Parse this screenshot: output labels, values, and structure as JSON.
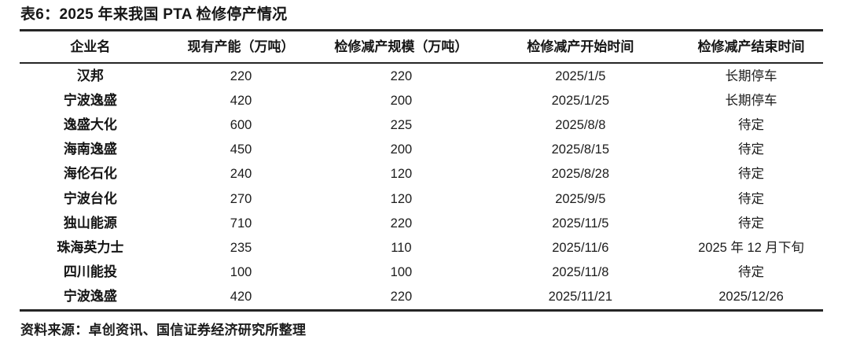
{
  "title": "表6：2025 年来我国 PTA 检修停产情况",
  "table": {
    "headers": [
      "企业名",
      "现有产能（万吨）",
      "检修减产规模（万吨）",
      "检修减产开始时间",
      "检修减产结束时间"
    ],
    "rows": [
      [
        "汉邦",
        "220",
        "220",
        "2025/1/5",
        "长期停车"
      ],
      [
        "宁波逸盛",
        "420",
        "200",
        "2025/1/25",
        "长期停车"
      ],
      [
        "逸盛大化",
        "600",
        "225",
        "2025/8/8",
        "待定"
      ],
      [
        "海南逸盛",
        "450",
        "200",
        "2025/8/15",
        "待定"
      ],
      [
        "海伦石化",
        "240",
        "120",
        "2025/8/28",
        "待定"
      ],
      [
        "宁波台化",
        "270",
        "120",
        "2025/9/5",
        "待定"
      ],
      [
        "独山能源",
        "710",
        "220",
        "2025/11/5",
        "待定"
      ],
      [
        "珠海英力士",
        "235",
        "110",
        "2025/11/6",
        "2025 年 12 月下旬"
      ],
      [
        "四川能投",
        "100",
        "100",
        "2025/11/8",
        "待定"
      ],
      [
        "宁波逸盛",
        "420",
        "220",
        "2025/11/21",
        "2025/12/26"
      ]
    ]
  },
  "footer": {
    "source": "资料来源：卓创资讯、国信证券经济研究所整理"
  },
  "colors": {
    "text": "#1a1a1a",
    "rule": "#262626",
    "background": "#ffffff"
  }
}
